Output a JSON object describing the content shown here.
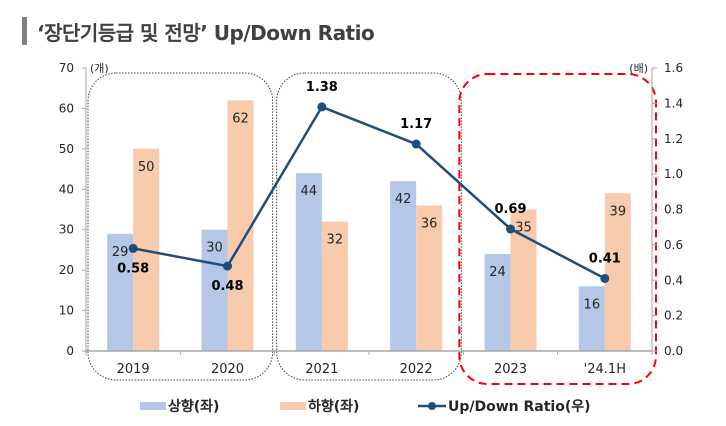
{
  "title": "‘장단기등급 및 전망’ Up/Down Ratio",
  "colors": {
    "up": "#B4C7E7",
    "down": "#F8CBAD",
    "ratio": "#1F4E79",
    "group_box": "#404040",
    "highlight_box": "#FF0000"
  },
  "chart_data": {
    "type": "bar",
    "title": "‘장단기등급 및 전망’ Up/Down Ratio",
    "categories": [
      "2019",
      "2020",
      "2021",
      "2022",
      "2023",
      "'24.1H"
    ],
    "series": [
      {
        "name": "상향(좌)",
        "type": "bar",
        "axis": "left",
        "values": [
          29,
          30,
          44,
          42,
          24,
          16
        ]
      },
      {
        "name": "하향(좌)",
        "type": "bar",
        "axis": "left",
        "values": [
          50,
          62,
          32,
          36,
          35,
          39
        ]
      },
      {
        "name": "Up/Down Ratio(우)",
        "type": "line",
        "axis": "right",
        "values": [
          0.58,
          0.48,
          1.38,
          1.17,
          0.69,
          0.41
        ]
      }
    ],
    "left_axis": {
      "unit": "(개)",
      "ylim": [
        0,
        70
      ],
      "ticks": [
        "0",
        "10",
        "20",
        "30",
        "40",
        "50",
        "60",
        "70"
      ]
    },
    "right_axis": {
      "unit": "(배)",
      "ylim": [
        0,
        1.6
      ],
      "ticks": [
        "0.0",
        "0.2",
        "0.4",
        "0.6",
        "0.8",
        "1.0",
        "1.2",
        "1.4",
        "1.6"
      ]
    },
    "ratio_labels": [
      "0.58",
      "0.48",
      "1.38",
      "1.17",
      "0.69",
      "0.41"
    ],
    "groups": [
      {
        "categories": [
          "2019",
          "2020"
        ],
        "style": "dotted"
      },
      {
        "categories": [
          "2021",
          "2022"
        ],
        "style": "dotted"
      },
      {
        "categories": [
          "2023",
          "'24.1H"
        ],
        "style": "dashed-red"
      }
    ],
    "grid": false,
    "legend": "bottom"
  },
  "legend": [
    {
      "label": "상향(좌)",
      "kind": "bar-up"
    },
    {
      "label": "하향(좌)",
      "kind": "bar-down"
    },
    {
      "label": "Up/Down Ratio(우)",
      "kind": "line"
    }
  ]
}
